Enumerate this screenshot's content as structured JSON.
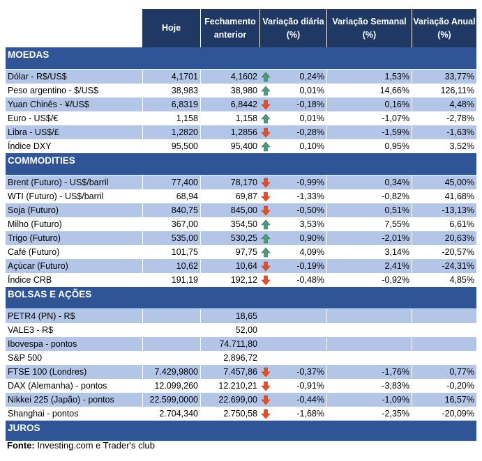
{
  "header": {
    "hoje": "Hoje",
    "fechamento": "Fechamento anterior",
    "diaria": "Variação diária (%)",
    "semanal": "Variação Semanal (%)",
    "anual": "Variação Anual (%)"
  },
  "colors": {
    "header": "#1f3864",
    "section": "#2f5597",
    "alt_row": "#b4c6e7",
    "up": "#4e9a7a",
    "down": "#e0512b"
  },
  "sections": [
    {
      "title": "MOEDAS",
      "rows": [
        {
          "label": "Dólar - R$/US$",
          "hoje": "4,1701",
          "fech": "4,1602",
          "dir": "up",
          "dia": "0,24%",
          "sem": "1,53%",
          "anu": "33,77%"
        },
        {
          "label": "Peso argentino - $/US$",
          "hoje": "38,983",
          "fech": "38,980",
          "dir": "up",
          "dia": "0,01%",
          "sem": "14,66%",
          "anu": "126,11%"
        },
        {
          "label": "Yuan Chinês - ¥/US$",
          "hoje": "6,8319",
          "fech": "6,8442",
          "dir": "down",
          "dia": "-0,18%",
          "sem": "0,16%",
          "anu": "4,48%"
        },
        {
          "label": "Euro - US$/€",
          "hoje": "1,158",
          "fech": "1,158",
          "dir": "up",
          "dia": "0,01%",
          "sem": "-1,07%",
          "anu": "-2,78%"
        },
        {
          "label": "Libra - US$/£",
          "hoje": "1,2820",
          "fech": "1,2856",
          "dir": "down",
          "dia": "-0,28%",
          "sem": "-1,59%",
          "anu": "-1,63%"
        },
        {
          "label": "Índice DXY",
          "hoje": "95,500",
          "fech": "95,400",
          "dir": "up",
          "dia": "0,10%",
          "sem": "0,95%",
          "anu": "3,52%"
        }
      ]
    },
    {
      "title": "COMMODITIES",
      "rows": [
        {
          "label": "Brent (Futuro) - US$/barril",
          "hoje": "77,400",
          "fech": "78,170",
          "dir": "down",
          "dia": "-0,99%",
          "sem": "0,34%",
          "anu": "45,00%"
        },
        {
          "label": "WTI (Futuro) - US$/barril",
          "hoje": "68,94",
          "fech": "69,87",
          "dir": "down",
          "dia": "-1,33%",
          "sem": "-0,82%",
          "anu": "41,68%"
        },
        {
          "label": "Soja (Futuro)",
          "hoje": "840,75",
          "fech": "845,00",
          "dir": "down",
          "dia": "-0,50%",
          "sem": "0,51%",
          "anu": "-13,13%"
        },
        {
          "label": "Milho (Futuro)",
          "hoje": "367,00",
          "fech": "354,50",
          "dir": "up",
          "dia": "3,53%",
          "sem": "7,55%",
          "anu": "6,61%"
        },
        {
          "label": "Trigo (Futuro)",
          "hoje": "535,00",
          "fech": "530,25",
          "dir": "up",
          "dia": "0,90%",
          "sem": "-2,01%",
          "anu": "20,63%"
        },
        {
          "label": "Café (Futuro)",
          "hoje": "101,75",
          "fech": "97,75",
          "dir": "up",
          "dia": "4,09%",
          "sem": "3,14%",
          "anu": "-20,57%"
        },
        {
          "label": "Açúcar (Futuro)",
          "hoje": "10,62",
          "fech": "10,64",
          "dir": "down",
          "dia": "-0,19%",
          "sem": "2,41%",
          "anu": "-24,31%"
        },
        {
          "label": "Índice CRB",
          "hoje": "191,19",
          "fech": "192,12",
          "dir": "down",
          "dia": "-0,48%",
          "sem": "-0,92%",
          "anu": "4,85%"
        }
      ]
    },
    {
      "title": "BOLSAS E AÇÕES",
      "rows": [
        {
          "label": "PETR4 (PN) - R$",
          "hoje": "",
          "fech": "18,65",
          "dir": "",
          "dia": "",
          "sem": "",
          "anu": ""
        },
        {
          "label": "VALE3 - R$",
          "hoje": "",
          "fech": "52,00",
          "dir": "",
          "dia": "",
          "sem": "",
          "anu": ""
        },
        {
          "label": "Ibovespa - pontos",
          "hoje": "",
          "fech": "74.711,80",
          "dir": "",
          "dia": "",
          "sem": "",
          "anu": ""
        },
        {
          "label": "S&P 500",
          "hoje": "",
          "fech": "2.896,72",
          "dir": "",
          "dia": "",
          "sem": "",
          "anu": ""
        },
        {
          "label": "FTSE 100 (Londres)",
          "hoje": "7.429,9800",
          "fech": "7.457,86",
          "dir": "down",
          "dia": "-0,37%",
          "sem": "-1,76%",
          "anu": "0,77%"
        },
        {
          "label": "DAX (Alemanha) - pontos",
          "hoje": "12.099,260",
          "fech": "12.210,21",
          "dir": "down",
          "dia": "-0,91%",
          "sem": "-3,83%",
          "anu": "-0,20%"
        },
        {
          "label": "Nikkei 225 (Japão) - pontos",
          "hoje": "22.599,0000",
          "fech": "22.699,00",
          "dir": "down",
          "dia": "-0,44%",
          "sem": "-1,09%",
          "anu": "16,57%"
        },
        {
          "label": "Shanghai - pontos",
          "hoje": "2.704,340",
          "fech": "2.750,58",
          "dir": "down",
          "dia": "-1,68%",
          "sem": "-2,35%",
          "anu": "-20,09%"
        }
      ]
    },
    {
      "title": "JUROS",
      "rows": []
    }
  ],
  "footer": {
    "bold": "Fonte:",
    "text": " Investing.com e Trader's club"
  }
}
